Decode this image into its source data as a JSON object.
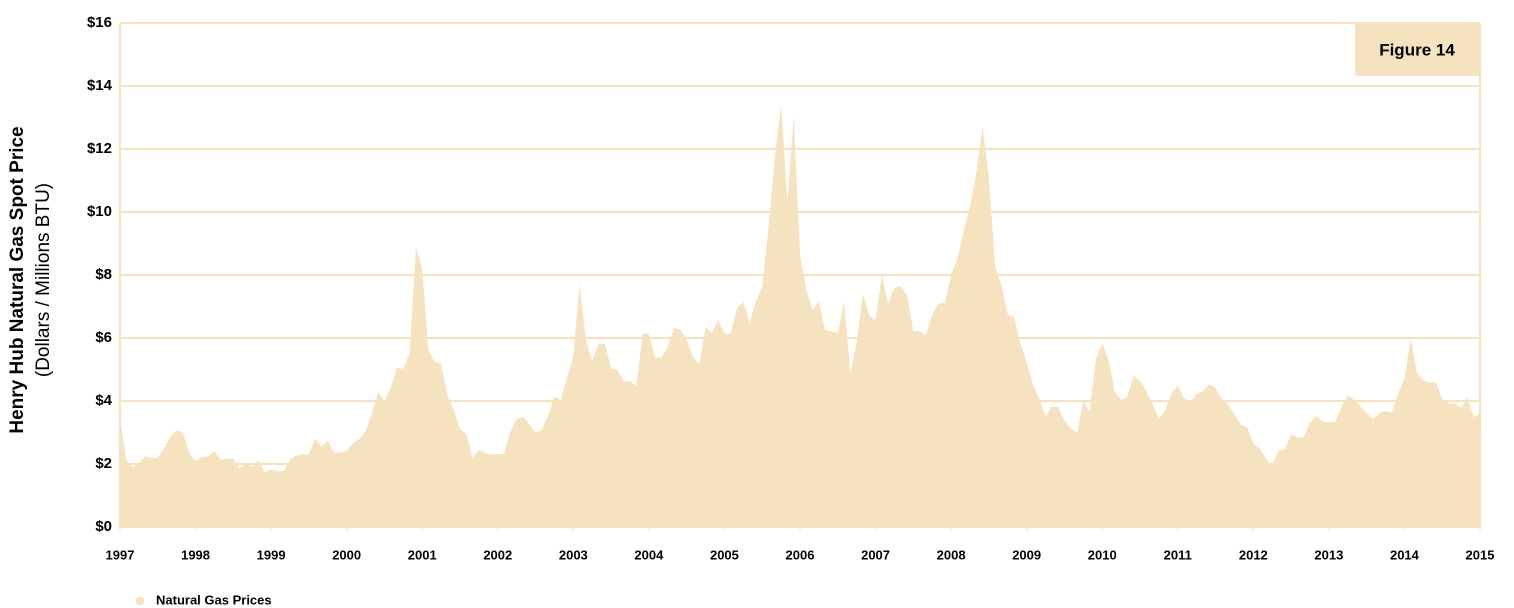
{
  "chart_data": {
    "type": "area",
    "annotation": "Figure 14",
    "y_label": "Henry Hub Natural Gas Spot Price",
    "y_sublabel": "(Dollars / Millions BTU)",
    "color": "#f5e3bf",
    "grid": true,
    "legend": "bottom-left",
    "xlim": [
      1997,
      2015
    ],
    "xticks": [
      1997,
      1998,
      1999,
      2000,
      2001,
      2002,
      2003,
      2004,
      2005,
      2006,
      2007,
      2008,
      2009,
      2010,
      2011,
      2012,
      2013,
      2014,
      2015
    ],
    "ylim": [
      0,
      16
    ],
    "yticks": [
      {
        "value": 0,
        "label": "$0"
      },
      {
        "value": 2,
        "label": "$2"
      },
      {
        "value": 4,
        "label": "$4"
      },
      {
        "value": 6,
        "label": "$6"
      },
      {
        "value": 8,
        "label": "$8"
      },
      {
        "value": 10,
        "label": "$10"
      },
      {
        "value": 12,
        "label": "$12"
      },
      {
        "value": 14,
        "label": "$14"
      },
      {
        "value": 16,
        "label": "$16"
      }
    ],
    "series": [
      {
        "name": "Natural Gas Prices",
        "color": "#f5e3bf",
        "x": [
          1997,
          1997.083,
          1997.167,
          1997.25,
          1997.333,
          1997.417,
          1997.5,
          1997.583,
          1997.667,
          1997.75,
          1997.833,
          1997.917,
          1998,
          1998.083,
          1998.167,
          1998.25,
          1998.333,
          1998.417,
          1998.5,
          1998.583,
          1998.667,
          1998.75,
          1998.833,
          1998.917,
          1999,
          1999.083,
          1999.167,
          1999.25,
          1999.333,
          1999.417,
          1999.5,
          1999.583,
          1999.667,
          1999.75,
          1999.833,
          1999.917,
          2000,
          2000.083,
          2000.167,
          2000.25,
          2000.333,
          2000.417,
          2000.5,
          2000.583,
          2000.667,
          2000.75,
          2000.833,
          2000.917,
          2001,
          2001.083,
          2001.167,
          2001.25,
          2001.333,
          2001.417,
          2001.5,
          2001.583,
          2001.667,
          2001.75,
          2001.833,
          2001.917,
          2002,
          2002.083,
          2002.167,
          2002.25,
          2002.333,
          2002.417,
          2002.5,
          2002.583,
          2002.667,
          2002.75,
          2002.833,
          2002.917,
          2003,
          2003.083,
          2003.167,
          2003.25,
          2003.333,
          2003.417,
          2003.5,
          2003.583,
          2003.667,
          2003.75,
          2003.833,
          2003.917,
          2004,
          2004.083,
          2004.167,
          2004.25,
          2004.333,
          2004.417,
          2004.5,
          2004.583,
          2004.667,
          2004.75,
          2004.833,
          2004.917,
          2005,
          2005.083,
          2005.167,
          2005.25,
          2005.333,
          2005.417,
          2005.5,
          2005.583,
          2005.667,
          2005.75,
          2005.833,
          2005.917,
          2006,
          2006.083,
          2006.167,
          2006.25,
          2006.333,
          2006.417,
          2006.5,
          2006.583,
          2006.667,
          2006.75,
          2006.833,
          2006.917,
          2007,
          2007.083,
          2007.167,
          2007.25,
          2007.333,
          2007.417,
          2007.5,
          2007.583,
          2007.667,
          2007.75,
          2007.833,
          2007.917,
          2008,
          2008.083,
          2008.167,
          2008.25,
          2008.333,
          2008.417,
          2008.5,
          2008.583,
          2008.667,
          2008.75,
          2008.833,
          2008.917,
          2009,
          2009.083,
          2009.167,
          2009.25,
          2009.333,
          2009.417,
          2009.5,
          2009.583,
          2009.667,
          2009.75,
          2009.833,
          2009.917,
          2010,
          2010.083,
          2010.167,
          2010.25,
          2010.333,
          2010.417,
          2010.5,
          2010.583,
          2010.667,
          2010.75,
          2010.833,
          2010.917,
          2011,
          2011.083,
          2011.167,
          2011.25,
          2011.333,
          2011.417,
          2011.5,
          2011.583,
          2011.667,
          2011.75,
          2011.833,
          2011.917,
          2012,
          2012.083,
          2012.167,
          2012.25,
          2012.333,
          2012.417,
          2012.5,
          2012.583,
          2012.667,
          2012.75,
          2012.833,
          2012.917,
          2013,
          2013.083,
          2013.167,
          2013.25,
          2013.333,
          2013.417,
          2013.5,
          2013.583,
          2013.667,
          2013.75,
          2013.833,
          2013.917,
          2014,
          2014.083,
          2014.167,
          2014.25,
          2014.333,
          2014.417,
          2014.5,
          2014.583,
          2014.667,
          2014.75,
          2014.833,
          2014.917,
          2015
        ],
        "values": [
          3.45,
          2.15,
          1.89,
          2.03,
          2.25,
          2.2,
          2.19,
          2.49,
          2.88,
          3.07,
          3.01,
          2.35,
          2.09,
          2.23,
          2.24,
          2.43,
          2.14,
          2.17,
          2.17,
          1.85,
          2.02,
          1.91,
          2.12,
          1.72,
          1.85,
          1.77,
          1.79,
          2.15,
          2.26,
          2.3,
          2.31,
          2.8,
          2.55,
          2.73,
          2.37,
          2.36,
          2.42,
          2.66,
          2.79,
          3.04,
          3.59,
          4.29,
          3.99,
          4.43,
          5.06,
          5.02,
          5.52,
          8.9,
          8.17,
          5.61,
          5.23,
          5.19,
          4.19,
          3.72,
          3.11,
          2.97,
          2.19,
          2.46,
          2.34,
          2.3,
          2.32,
          2.32,
          3.03,
          3.43,
          3.5,
          3.26,
          2.99,
          3.09,
          3.55,
          4.13,
          4.04,
          4.74,
          5.43,
          7.71,
          5.93,
          5.26,
          5.81,
          5.82,
          5.03,
          4.99,
          4.62,
          4.63,
          4.47,
          6.13,
          6.14,
          5.37,
          5.39,
          5.71,
          6.33,
          6.27,
          5.93,
          5.41,
          5.15,
          6.35,
          6.17,
          6.58,
          6.15,
          6.14,
          6.96,
          7.16,
          6.47,
          7.18,
          7.63,
          9.53,
          11.75,
          13.42,
          10.3,
          13.05,
          8.69,
          7.54,
          6.89,
          7.16,
          6.25,
          6.21,
          6.17,
          7.14,
          4.9,
          5.85,
          7.41,
          6.73,
          6.55,
          8.0,
          7.11,
          7.6,
          7.64,
          7.35,
          6.22,
          6.22,
          6.08,
          6.74,
          7.1,
          7.11,
          7.99,
          8.54,
          9.41,
          10.18,
          11.27,
          12.69,
          11.09,
          8.26,
          7.67,
          6.74,
          6.68,
          5.82,
          5.24,
          4.52,
          4.06,
          3.5,
          3.83,
          3.8,
          3.38,
          3.14,
          2.99,
          4.01,
          3.66,
          5.35,
          5.83,
          5.32,
          4.29,
          4.03,
          4.14,
          4.8,
          4.63,
          4.32,
          3.89,
          3.43,
          3.71,
          4.25,
          4.49,
          4.09,
          3.97,
          4.24,
          4.31,
          4.54,
          4.42,
          4.06,
          3.9,
          3.57,
          3.24,
          3.17,
          2.67,
          2.5,
          2.17,
          1.95,
          2.43,
          2.46,
          2.95,
          2.84,
          2.85,
          3.32,
          3.54,
          3.34,
          3.33,
          3.33,
          3.81,
          4.17,
          4.04,
          3.83,
          3.62,
          3.43,
          3.62,
          3.68,
          3.64,
          4.24,
          4.71,
          6.0,
          4.9,
          4.66,
          4.58,
          4.59,
          4.05,
          3.91,
          3.92,
          3.78,
          4.12,
          3.48,
          3.6
        ]
      }
    ]
  }
}
